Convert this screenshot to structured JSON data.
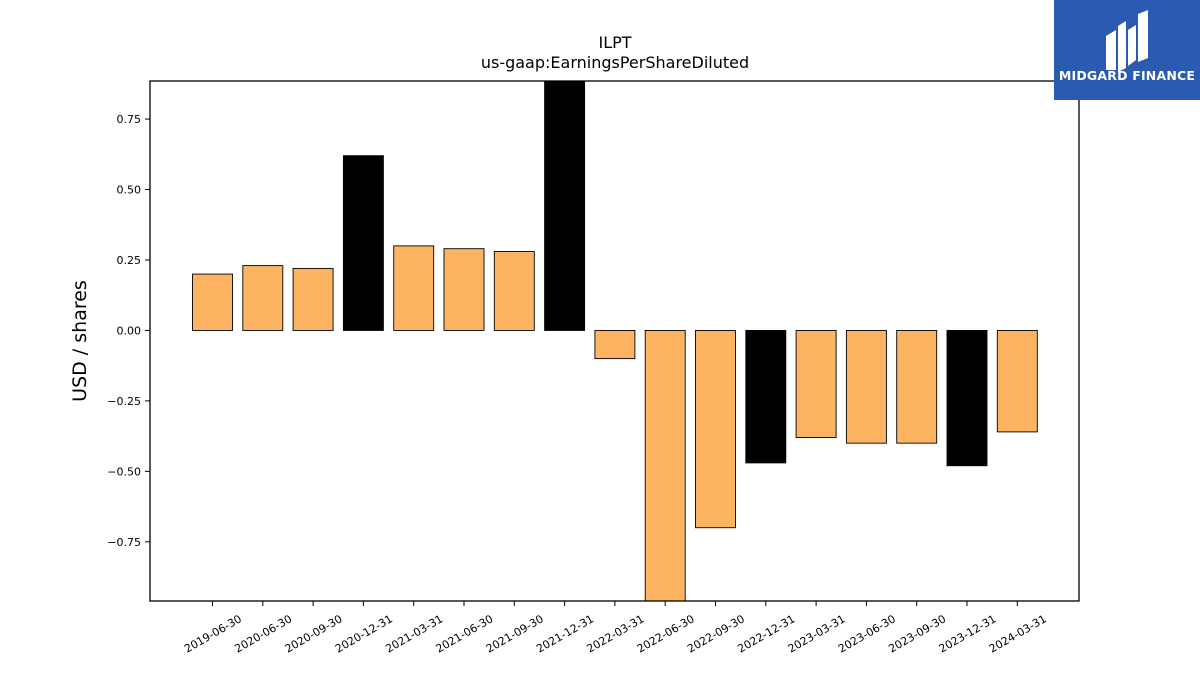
{
  "logo": {
    "text": "MIDGARD FINANCE",
    "bg_color": "#2b5bb0",
    "mark_color": "#ffffff"
  },
  "chart_data": {
    "type": "bar",
    "title": "ILPT",
    "subtitle": "us-gaap:EarningsPerShareDiluted",
    "xlabel": "",
    "ylabel": "USD / shares",
    "ylim": [
      -0.96,
      0.885
    ],
    "yticks": [
      -0.75,
      -0.5,
      -0.25,
      0.0,
      0.25,
      0.5,
      0.75
    ],
    "ytick_labels": [
      "−0.75",
      "−0.50",
      "−0.25",
      "0.00",
      "0.25",
      "0.50",
      "0.75"
    ],
    "grid": false,
    "categories": [
      "2019-06-30",
      "2020-06-30",
      "2020-09-30",
      "2020-12-31",
      "2021-03-31",
      "2021-06-30",
      "2021-09-30",
      "2021-12-31",
      "2022-03-31",
      "2022-06-30",
      "2022-09-30",
      "2022-12-31",
      "2023-03-31",
      "2023-06-30",
      "2023-09-30",
      "2023-12-31",
      "2024-03-31"
    ],
    "values": [
      0.2,
      0.23,
      0.22,
      0.62,
      0.3,
      0.29,
      0.28,
      0.89,
      -0.1,
      -0.97,
      -0.7,
      -0.47,
      -0.38,
      -0.4,
      -0.4,
      -0.48,
      -0.36
    ],
    "bar_colors": [
      "#fdb462",
      "#fdb462",
      "#fdb462",
      "#000000",
      "#fdb462",
      "#fdb462",
      "#fdb462",
      "#000000",
      "#fdb462",
      "#fdb462",
      "#fdb462",
      "#000000",
      "#fdb462",
      "#fdb462",
      "#fdb462",
      "#000000",
      "#fdb462"
    ]
  }
}
